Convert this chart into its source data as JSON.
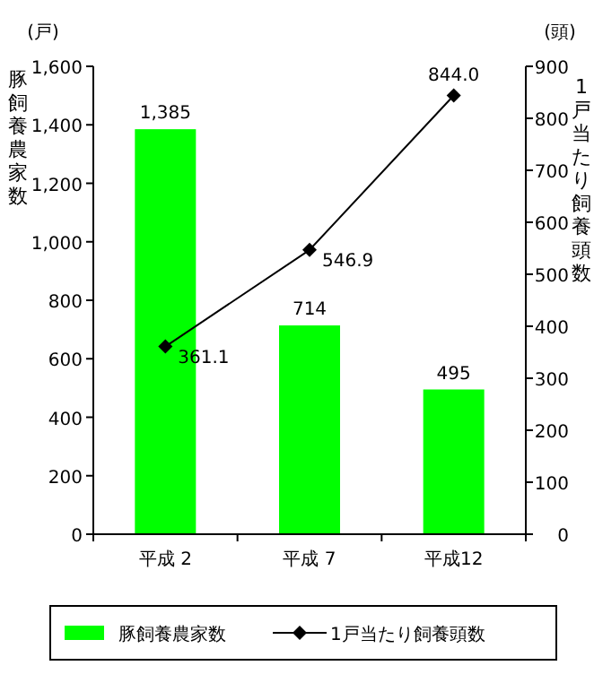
{
  "chart_data": {
    "type": "bar",
    "categories": [
      "平成 2",
      "平成 7",
      "平成12"
    ],
    "ylabel": "豚飼養農家数",
    "y2label": "1戸当たり飼養頭数",
    "annotations": [
      "(戸)",
      "(頭)"
    ],
    "series": [
      {
        "name": "豚飼養農家数",
        "color": "#00ff00",
        "values": [
          1385,
          714,
          495
        ],
        "value_labels": [
          "1,385",
          "714",
          "495"
        ]
      },
      {
        "name": "1戸当たり飼養頭数",
        "type": "line",
        "axis": "y2",
        "color": "#000000",
        "values": [
          361.1,
          546.9,
          844.0
        ],
        "value_labels": [
          "361.1",
          "546.9",
          "844.0"
        ]
      }
    ],
    "ylim": [
      0,
      1600
    ],
    "yticks": [
      0,
      200,
      400,
      600,
      800,
      {
        "value": 1000,
        "label": "1,000"
      },
      {
        "value": 1200,
        "label": "1,200"
      },
      {
        "value": 1400,
        "label": "1,400"
      },
      {
        "value": 1600,
        "label": "1,600"
      }
    ],
    "y2lim": [
      0,
      900
    ],
    "y2ticks": [
      0,
      100,
      200,
      300,
      400,
      500,
      600,
      700,
      800,
      900
    ],
    "marker": "diamond",
    "legend": "bottom",
    "grid": false
  }
}
